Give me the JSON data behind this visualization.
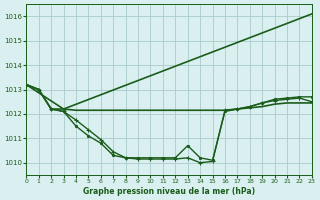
{
  "bg_color": "#daf0f0",
  "grid_color": "#aacccc",
  "line_color": "#1a5c1a",
  "title": "Graphe pression niveau de la mer (hPa)",
  "xlim": [
    0,
    23
  ],
  "ylim": [
    1009.5,
    1016.5
  ],
  "yticks": [
    1010,
    1011,
    1012,
    1013,
    1014,
    1015,
    1016
  ],
  "xticks": [
    0,
    1,
    2,
    3,
    4,
    5,
    6,
    7,
    8,
    9,
    10,
    11,
    12,
    13,
    14,
    15,
    16,
    17,
    18,
    19,
    20,
    21,
    22,
    23
  ],
  "series": [
    {
      "x": [
        0,
        3,
        23
      ],
      "y": [
        1013.2,
        1012.2,
        1016.1
      ],
      "marker": null,
      "lw": 1.2,
      "ls": "-"
    },
    {
      "x": [
        0,
        1,
        2,
        3,
        4,
        5,
        6,
        7,
        8,
        9,
        10,
        11,
        12,
        13,
        14,
        15,
        16,
        17,
        18,
        19,
        20,
        21,
        22,
        23
      ],
      "y": [
        1013.2,
        1013.0,
        1012.2,
        1012.2,
        1012.15,
        1012.15,
        1012.15,
        1012.15,
        1012.15,
        1012.15,
        1012.15,
        1012.15,
        1012.15,
        1012.15,
        1012.15,
        1012.15,
        1012.15,
        1012.2,
        1012.25,
        1012.3,
        1012.4,
        1012.45,
        1012.45,
        1012.45
      ],
      "marker": null,
      "lw": 1.2,
      "ls": "-"
    },
    {
      "x": [
        0,
        1,
        2,
        3,
        4,
        5,
        6,
        7,
        8,
        9,
        10,
        11,
        12,
        13,
        14,
        15,
        16,
        17,
        18,
        19,
        20,
        21,
        22,
        23
      ],
      "y": [
        1013.2,
        1013.0,
        1012.2,
        1012.1,
        1011.5,
        1011.1,
        1010.8,
        1010.3,
        1010.2,
        1010.2,
        1010.2,
        1010.2,
        1010.2,
        1010.7,
        1010.2,
        1010.1,
        1012.1,
        1012.2,
        1012.3,
        1012.45,
        1012.6,
        1012.65,
        1012.7,
        1012.7
      ],
      "marker": ".",
      "markersize": 3.0,
      "lw": 1.0,
      "ls": "-"
    },
    {
      "x": [
        0,
        1,
        2,
        3,
        4,
        5,
        6,
        7,
        8,
        9,
        10,
        11,
        12,
        13,
        14,
        15,
        16,
        17,
        18,
        19,
        20,
        21,
        22,
        23
      ],
      "y": [
        1013.2,
        1013.0,
        1012.2,
        1012.1,
        1011.75,
        1011.35,
        1010.95,
        1010.45,
        1010.2,
        1010.15,
        1010.15,
        1010.15,
        1010.15,
        1010.2,
        1010.0,
        1010.05,
        1012.15,
        1012.2,
        1012.3,
        1012.45,
        1012.55,
        1012.6,
        1012.65,
        1012.5
      ],
      "marker": "+",
      "markersize": 3.5,
      "lw": 1.0,
      "ls": "-"
    }
  ]
}
